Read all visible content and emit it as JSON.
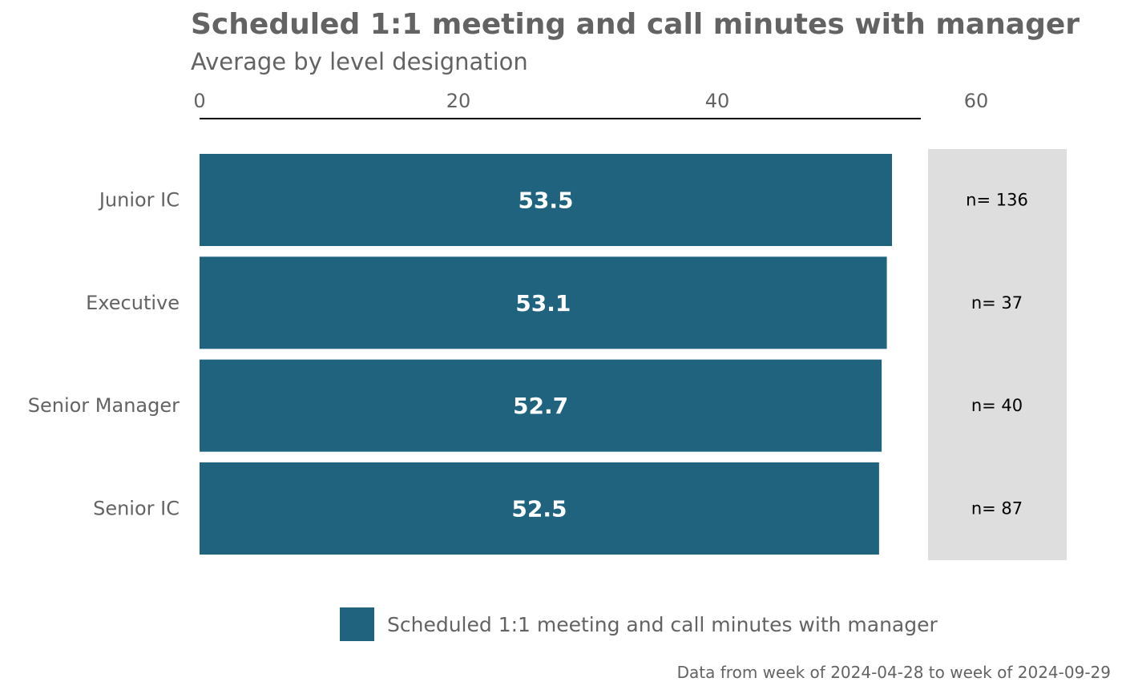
{
  "colors": {
    "bar": "#1F637E",
    "n_panel": "#DEDEDE",
    "text": "#636363",
    "axis_line": "#000000"
  },
  "chart_data": {
    "type": "bar",
    "orientation": "horizontal",
    "title": "Scheduled 1:1 meeting and call minutes with manager",
    "subtitle": "Average by level designation",
    "categories": [
      "Junior IC",
      "Executive",
      "Senior Manager",
      "Senior IC"
    ],
    "series": [
      {
        "name": "Scheduled 1:1 meeting and call minutes with manager",
        "values": [
          53.5,
          53.1,
          52.7,
          52.5
        ],
        "value_labels": [
          "53.5",
          "53.1",
          "52.7",
          "52.5"
        ]
      }
    ],
    "n_labels": [
      "n= 136",
      "n= 37",
      "n= 40",
      "n= 87"
    ],
    "xlim": [
      0,
      60
    ],
    "x_ticks": [
      0,
      20,
      40,
      60
    ],
    "x_tick_labels": [
      "0",
      "20",
      "40",
      "60"
    ],
    "x_axis_position": "top",
    "grid": false,
    "legend_position": "bottom",
    "caption": "Data from week of 2024-04-28 to week of 2024-09-29"
  }
}
